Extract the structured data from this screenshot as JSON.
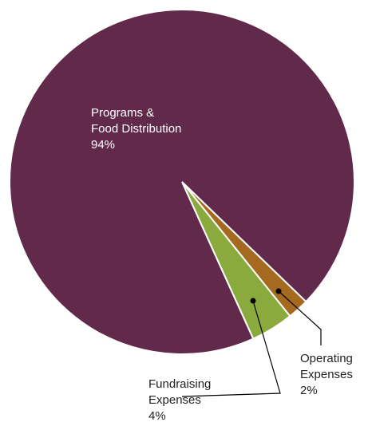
{
  "chart_data": {
    "type": "pie",
    "categories": [
      "Operating\nExpenses",
      "Fundraising\nExpenses",
      "Programs &\nFood Distribution"
    ],
    "values": [
      2,
      4,
      94
    ],
    "value_labels": [
      "2%",
      "4%",
      "94%"
    ],
    "colors": [
      "#a5691f",
      "#8aaa3e",
      "#612a4a"
    ]
  }
}
